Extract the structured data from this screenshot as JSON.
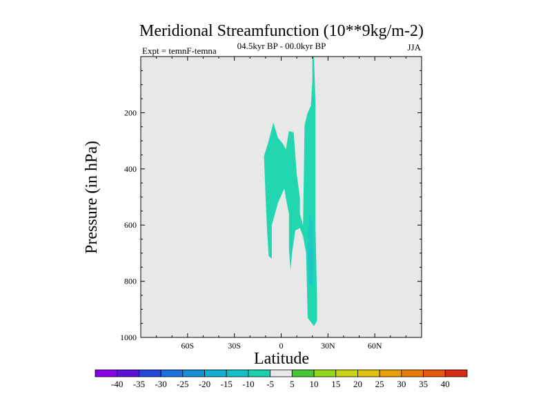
{
  "chart_data": {
    "type": "contour",
    "title": "Meridional Streamfunction (10**9kg/m-2)",
    "subtitle": "04.5kyr BP - 00.0kyr BP",
    "left_label": "Expt = temnF-temna",
    "right_label": "JJA",
    "xlabel": "Latitude",
    "ylabel": "Pressure (in hPa)",
    "xlim": [
      -90,
      90
    ],
    "ylim": [
      1000,
      0
    ],
    "x_ticks": [
      {
        "value": -60,
        "label": "60S"
      },
      {
        "value": -30,
        "label": "30S"
      },
      {
        "value": 0,
        "label": "0"
      },
      {
        "value": 30,
        "label": "30N"
      },
      {
        "value": 60,
        "label": "60N"
      }
    ],
    "y_ticks": [
      {
        "value": 200,
        "label": "200"
      },
      {
        "value": 400,
        "label": "400"
      },
      {
        "value": 600,
        "label": "600"
      },
      {
        "value": 800,
        "label": "800"
      },
      {
        "value": 1000,
        "label": "1000"
      }
    ],
    "background_color": "#e8e8e8",
    "regions": [
      {
        "level": "-10 to -5",
        "color": "#22d6b0",
        "points": [
          [
            -11,
            355
          ],
          [
            -8,
            300
          ],
          [
            -5,
            235
          ],
          [
            -2,
            290
          ],
          [
            1,
            310
          ],
          [
            3,
            330
          ],
          [
            5,
            265
          ],
          [
            8,
            270
          ],
          [
            10,
            420
          ],
          [
            12,
            500
          ],
          [
            12,
            560
          ],
          [
            14,
            600
          ],
          [
            15,
            245
          ],
          [
            17,
            200
          ],
          [
            19,
            175
          ],
          [
            20,
            85
          ],
          [
            20,
            45
          ],
          [
            20,
            0
          ],
          [
            21,
            0
          ],
          [
            22,
            165
          ],
          [
            22,
            250
          ],
          [
            22,
            420
          ],
          [
            22,
            600
          ],
          [
            23,
            860
          ],
          [
            23,
            940
          ],
          [
            21,
            960
          ],
          [
            19,
            945
          ],
          [
            17,
            930
          ],
          [
            16,
            700
          ],
          [
            14,
            640
          ],
          [
            12,
            610
          ],
          [
            9,
            620
          ],
          [
            7,
            700
          ],
          [
            6,
            760
          ],
          [
            5,
            690
          ],
          [
            5,
            620
          ],
          [
            5,
            560
          ],
          [
            3,
            505
          ],
          [
            2,
            470
          ],
          [
            -2,
            520
          ],
          [
            -5,
            580
          ],
          [
            -6,
            600
          ],
          [
            -6,
            720
          ],
          [
            -8,
            710
          ],
          [
            -9,
            620
          ],
          [
            -10,
            500
          ]
        ]
      },
      {
        "level": "-15 to -10",
        "color": "#1ec8c8",
        "points": [
          [
            18,
            560
          ],
          [
            20,
            590
          ],
          [
            21,
            720
          ],
          [
            20,
            820
          ],
          [
            18,
            810
          ],
          [
            17,
            700
          ]
        ]
      }
    ],
    "colorbar": {
      "labels": [
        "-40",
        "-35",
        "-30",
        "-25",
        "-20",
        "-15",
        "-10",
        "-5",
        "5",
        "10",
        "15",
        "20",
        "25",
        "30",
        "35",
        "40"
      ],
      "colors": [
        "#8a00e6",
        "#5a10d8",
        "#2448d8",
        "#1a70dc",
        "#1890d8",
        "#12aed4",
        "#12c2c6",
        "#1ad0b0",
        "#e8e8e8",
        "#48c838",
        "#94d81a",
        "#c8d414",
        "#e0c00c",
        "#e8a008",
        "#e87c08",
        "#e85810",
        "#d82c12"
      ]
    }
  }
}
